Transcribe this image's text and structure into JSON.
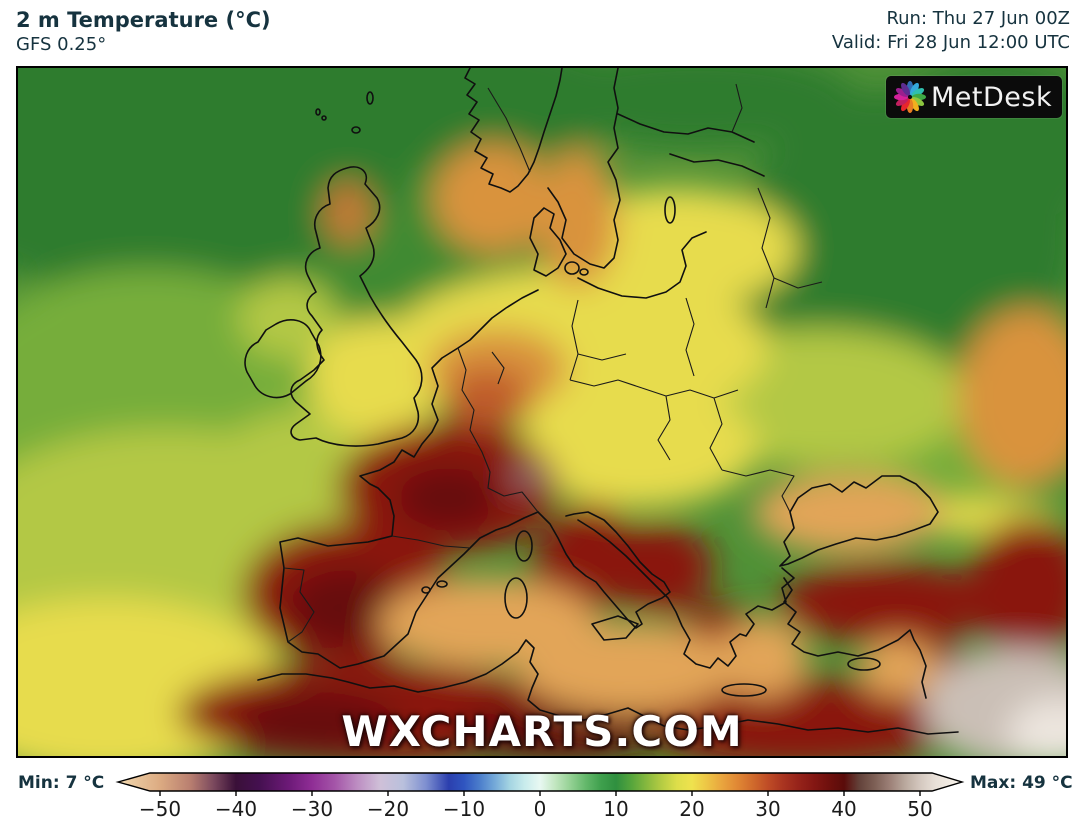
{
  "header": {
    "title": "2 m Temperature (°C)",
    "subtitle": "GFS 0.25°",
    "run": "Run: Thu 27 Jun 00Z",
    "valid": "Valid: Fri 28 Jun 12:00 UTC",
    "text_color": "#16333f"
  },
  "map": {
    "watermark": "WXCHARTS.COM",
    "logo": {
      "text": "MetDesk",
      "icon": "metdesk-pinwheel-icon",
      "background": "#0b0b0b",
      "petal_colors": [
        "#2f6db5",
        "#35a8dc",
        "#2fbfae",
        "#3faa45",
        "#8dc63f",
        "#f2b01e",
        "#e87c23",
        "#e8262d",
        "#c21f5e",
        "#d4219a",
        "#9b1f8e",
        "#5d2d91"
      ]
    }
  },
  "colorbar": {
    "min_label": "Min: 7 °C",
    "max_label": "Max: 49 °C",
    "unit": "°C",
    "ticks": [
      {
        "v": -50,
        "label": "−50"
      },
      {
        "v": -40,
        "label": "−40"
      },
      {
        "v": -30,
        "label": "−30"
      },
      {
        "v": -20,
        "label": "−20"
      },
      {
        "v": -10,
        "label": "−10"
      },
      {
        "v": 0,
        "label": "0"
      },
      {
        "v": 10,
        "label": "10"
      },
      {
        "v": 20,
        "label": "20"
      },
      {
        "v": 30,
        "label": "30"
      },
      {
        "v": 40,
        "label": "40"
      },
      {
        "v": 50,
        "label": "50"
      }
    ],
    "gradient": [
      {
        "t": -55,
        "c": "#f0d5ac"
      },
      {
        "t": -50,
        "c": "#dcab82"
      },
      {
        "t": -46,
        "c": "#b97f70"
      },
      {
        "t": -43,
        "c": "#7c4a5e"
      },
      {
        "t": -40,
        "c": "#3a1038"
      },
      {
        "t": -37,
        "c": "#44104f"
      },
      {
        "t": -33,
        "c": "#6d1a78"
      },
      {
        "t": -30,
        "c": "#8f2d95"
      },
      {
        "t": -27,
        "c": "#a455a8"
      },
      {
        "t": -24,
        "c": "#bd8ec2"
      },
      {
        "t": -21,
        "c": "#cfc0d8"
      },
      {
        "t": -18,
        "c": "#b9c0dc"
      },
      {
        "t": -15,
        "c": "#7e8fd0"
      },
      {
        "t": -12,
        "c": "#2b3fae"
      },
      {
        "t": -10,
        "c": "#2f55c0"
      },
      {
        "t": -8,
        "c": "#4a7ccb"
      },
      {
        "t": -6,
        "c": "#73a8d8"
      },
      {
        "t": -4,
        "c": "#a4d4e2"
      },
      {
        "t": -2,
        "c": "#c9ecec"
      },
      {
        "t": 0,
        "c": "#e8f8f2"
      },
      {
        "t": 2,
        "c": "#c2e6c0"
      },
      {
        "t": 4,
        "c": "#94d194"
      },
      {
        "t": 6,
        "c": "#64b86b"
      },
      {
        "t": 8,
        "c": "#3fa04d"
      },
      {
        "t": 10,
        "c": "#2f8f3f"
      },
      {
        "t": 12,
        "c": "#55a53c"
      },
      {
        "t": 14,
        "c": "#86b83e"
      },
      {
        "t": 16,
        "c": "#b5cc43"
      },
      {
        "t": 18,
        "c": "#ddde4a"
      },
      {
        "t": 20,
        "c": "#efe24e"
      },
      {
        "t": 22,
        "c": "#edc445"
      },
      {
        "t": 24,
        "c": "#e9a43e"
      },
      {
        "t": 26,
        "c": "#e08734"
      },
      {
        "t": 28,
        "c": "#d06a2c"
      },
      {
        "t": 30,
        "c": "#bf4c26"
      },
      {
        "t": 32,
        "c": "#a93420"
      },
      {
        "t": 34,
        "c": "#96231a"
      },
      {
        "t": 36,
        "c": "#841713"
      },
      {
        "t": 38,
        "c": "#6f100d"
      },
      {
        "t": 40,
        "c": "#5a0c0a"
      },
      {
        "t": 42,
        "c": "#63423a"
      },
      {
        "t": 44,
        "c": "#7d5f55"
      },
      {
        "t": 46,
        "c": "#9c8077"
      },
      {
        "t": 48,
        "c": "#b9a89d"
      },
      {
        "t": 50,
        "c": "#d4c8bf"
      },
      {
        "t": 52,
        "c": "#e8e0d8"
      },
      {
        "t": 55,
        "c": "#f7f2ea"
      }
    ]
  },
  "chart_data": {
    "type": "heatmap",
    "title": "2 m Temperature (°C)",
    "model": "GFS 0.25°",
    "run": "Thu 27 Jun 00Z",
    "valid": "Fri 28 Jun 12:00 UTC",
    "units": "°C",
    "min_value": 7,
    "max_value": 49,
    "scale_ticks": [
      -50,
      -40,
      -30,
      -20,
      -10,
      0,
      10,
      20,
      30,
      40,
      50
    ],
    "scale_range": [
      -55,
      55
    ],
    "legend_position": "bottom",
    "region": "Europe"
  }
}
